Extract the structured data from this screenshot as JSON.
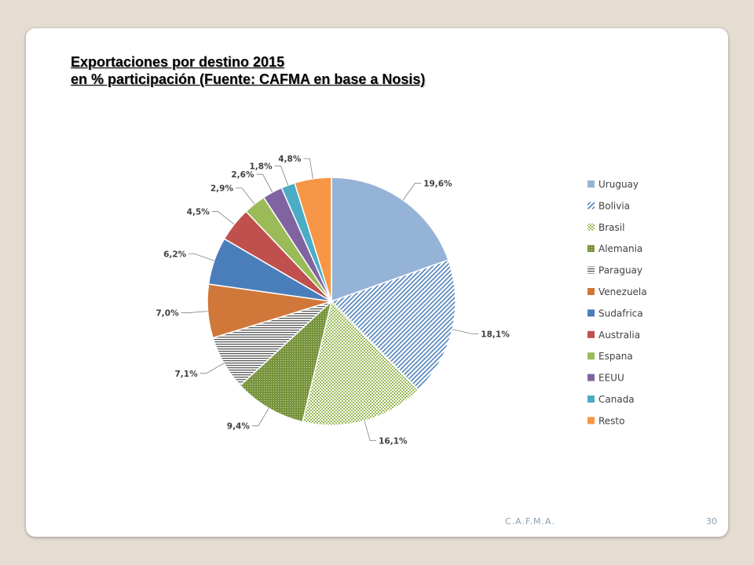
{
  "slide": {
    "title_line1": "Exportaciones por destino 2015",
    "title_line2": "en % participación (Fuente: CAFMA en base a Nosis)",
    "footer_org": "C.A.F.M.A.",
    "page_number": "30"
  },
  "chart_data": {
    "type": "pie",
    "legend_position": "right",
    "slices": [
      {
        "name": "Uruguay",
        "value": 19.6,
        "label": "19,6%",
        "color": "#95b3d7",
        "pattern": "solid"
      },
      {
        "name": "Bolivia",
        "value": 18.1,
        "label": "18,1%",
        "color": "#4f81bd",
        "pattern": "diagonal-stripes"
      },
      {
        "name": "Brasil",
        "value": 16.1,
        "label": "16,1%",
        "color": "#9bbb59",
        "pattern": "checker"
      },
      {
        "name": "Alemania",
        "value": 9.4,
        "label": "9,4%",
        "color": "#77933c",
        "pattern": "dots"
      },
      {
        "name": "Paraguay",
        "value": 7.1,
        "label": "7,1%",
        "color": "#595959",
        "pattern": "horizontal-stripes"
      },
      {
        "name": "Venezuela",
        "value": 7.0,
        "label": "7,0%",
        "color": "#d0783a",
        "pattern": "solid"
      },
      {
        "name": "Sudafrica",
        "value": 6.2,
        "label": "6,2%",
        "color": "#4a7ebb",
        "pattern": "solid"
      },
      {
        "name": "Australia",
        "value": 4.5,
        "label": "4,5%",
        "color": "#c0504d",
        "pattern": "solid"
      },
      {
        "name": "Espana",
        "value": 2.9,
        "label": "2,9%",
        "color": "#9bbb59",
        "pattern": "solid"
      },
      {
        "name": "EEUU",
        "value": 2.6,
        "label": "2,6%",
        "color": "#8064a2",
        "pattern": "solid"
      },
      {
        "name": "Canada",
        "value": 1.8,
        "label": "1,8%",
        "color": "#4bacc6",
        "pattern": "solid"
      },
      {
        "name": "Resto",
        "value": 4.8,
        "label": "4,8%",
        "color": "#f79646",
        "pattern": "solid"
      }
    ]
  }
}
